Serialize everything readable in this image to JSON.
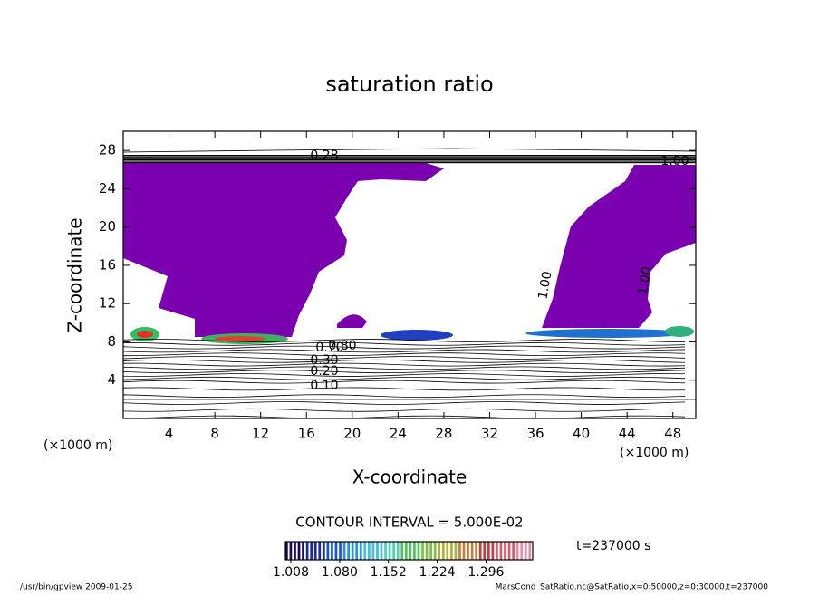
{
  "chart_data": {
    "type": "contour",
    "title": "saturation ratio",
    "x_label": "X-coordinate",
    "y_label": "Z-coordinate",
    "x_unit": "(×1000 m)",
    "y_unit": "(×1000 m)",
    "xlim": [
      0,
      50
    ],
    "ylim": [
      0,
      30
    ],
    "xticks": [
      4,
      8,
      12,
      16,
      20,
      24,
      28,
      32,
      36,
      40,
      44,
      48
    ],
    "yticks": [
      4,
      8,
      12,
      16,
      20,
      24,
      28
    ],
    "contour_interval": "CONTOUR INTERVAL = 5.000E-02",
    "contour_labels": [
      "0.10",
      "0.20",
      "0.30",
      "0.70",
      "0.80",
      "1.00",
      "1.00",
      "1.00",
      "0.28"
    ],
    "fill_color": "#7a00b0",
    "colorbar": {
      "clim": [
        1.0,
        1.365
      ],
      "ticks": [
        {
          "value": 1.008,
          "label": "1.008"
        },
        {
          "value": 1.08,
          "label": "1.080"
        },
        {
          "value": 1.152,
          "label": "1.152"
        },
        {
          "value": 1.224,
          "label": "1.224"
        },
        {
          "value": 1.296,
          "label": "1.296"
        }
      ],
      "colors": [
        "#1a0a5a",
        "#1a2aa0",
        "#1a55d0",
        "#2a90e0",
        "#40c0e0",
        "#50d0b0",
        "#50c060",
        "#80c040",
        "#b0b040",
        "#c08040",
        "#c04040",
        "#d06070",
        "#e090a0"
      ]
    },
    "time_label": "t=237000 s",
    "footer_left": "/usr/bin/gpview  2009-01-25",
    "footer_right": "MarsCond_SatRatio.nc@SatRatio,x=0:50000,z=0:30000,t=237000"
  }
}
